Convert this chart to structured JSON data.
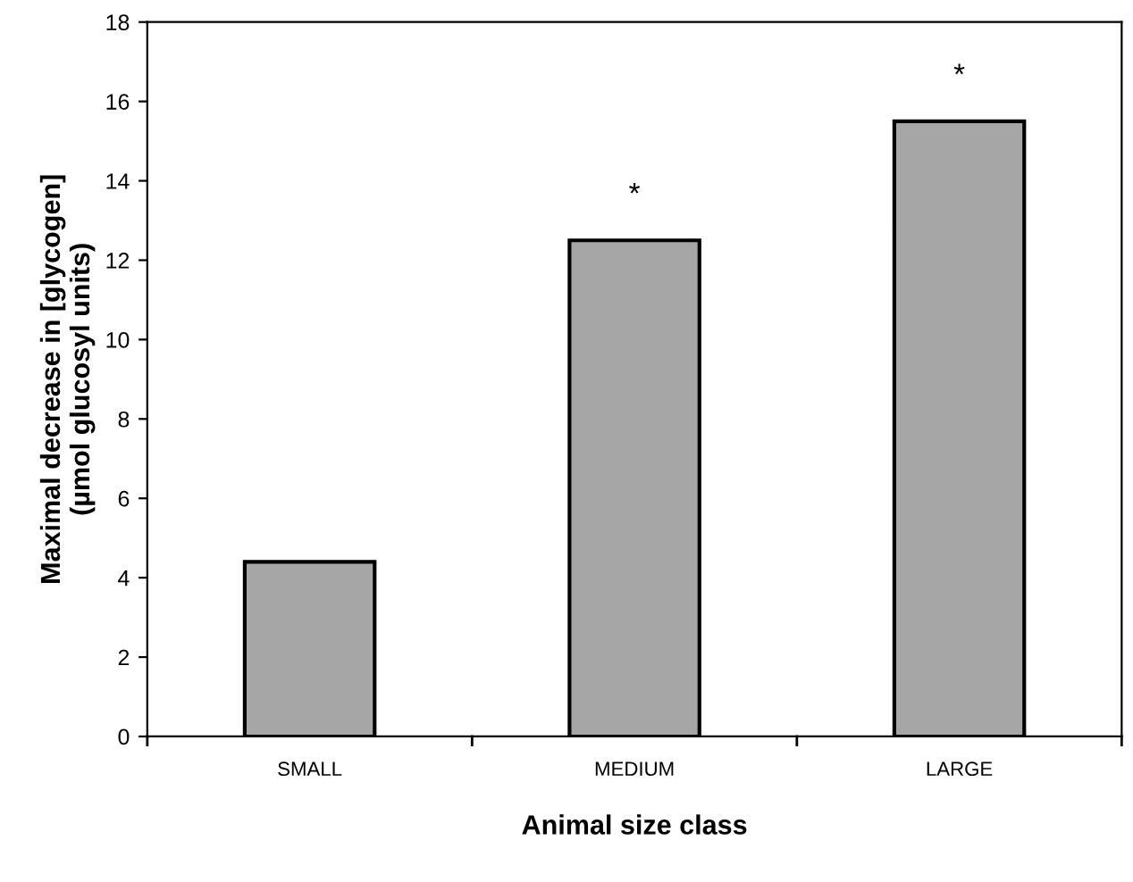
{
  "chart_data": {
    "type": "bar",
    "xlabel": "Animal size class",
    "ylabel": "Maximal decrease in [glycogen]\n(µmol glucosyl units)",
    "categories": [
      "SMALL",
      "MEDIUM",
      "LARGE"
    ],
    "values": [
      4.4,
      12.5,
      15.5
    ],
    "color": "#a6a6a6",
    "ylim": [
      0,
      18
    ],
    "yticks": [
      0,
      2,
      4,
      6,
      8,
      10,
      12,
      14,
      16,
      18
    ],
    "grid": false,
    "annotations": [
      {
        "text": "*",
        "x": "MEDIUM",
        "y": 12.5
      },
      {
        "text": "*",
        "x": "LARGE",
        "y": 15.5
      }
    ]
  }
}
